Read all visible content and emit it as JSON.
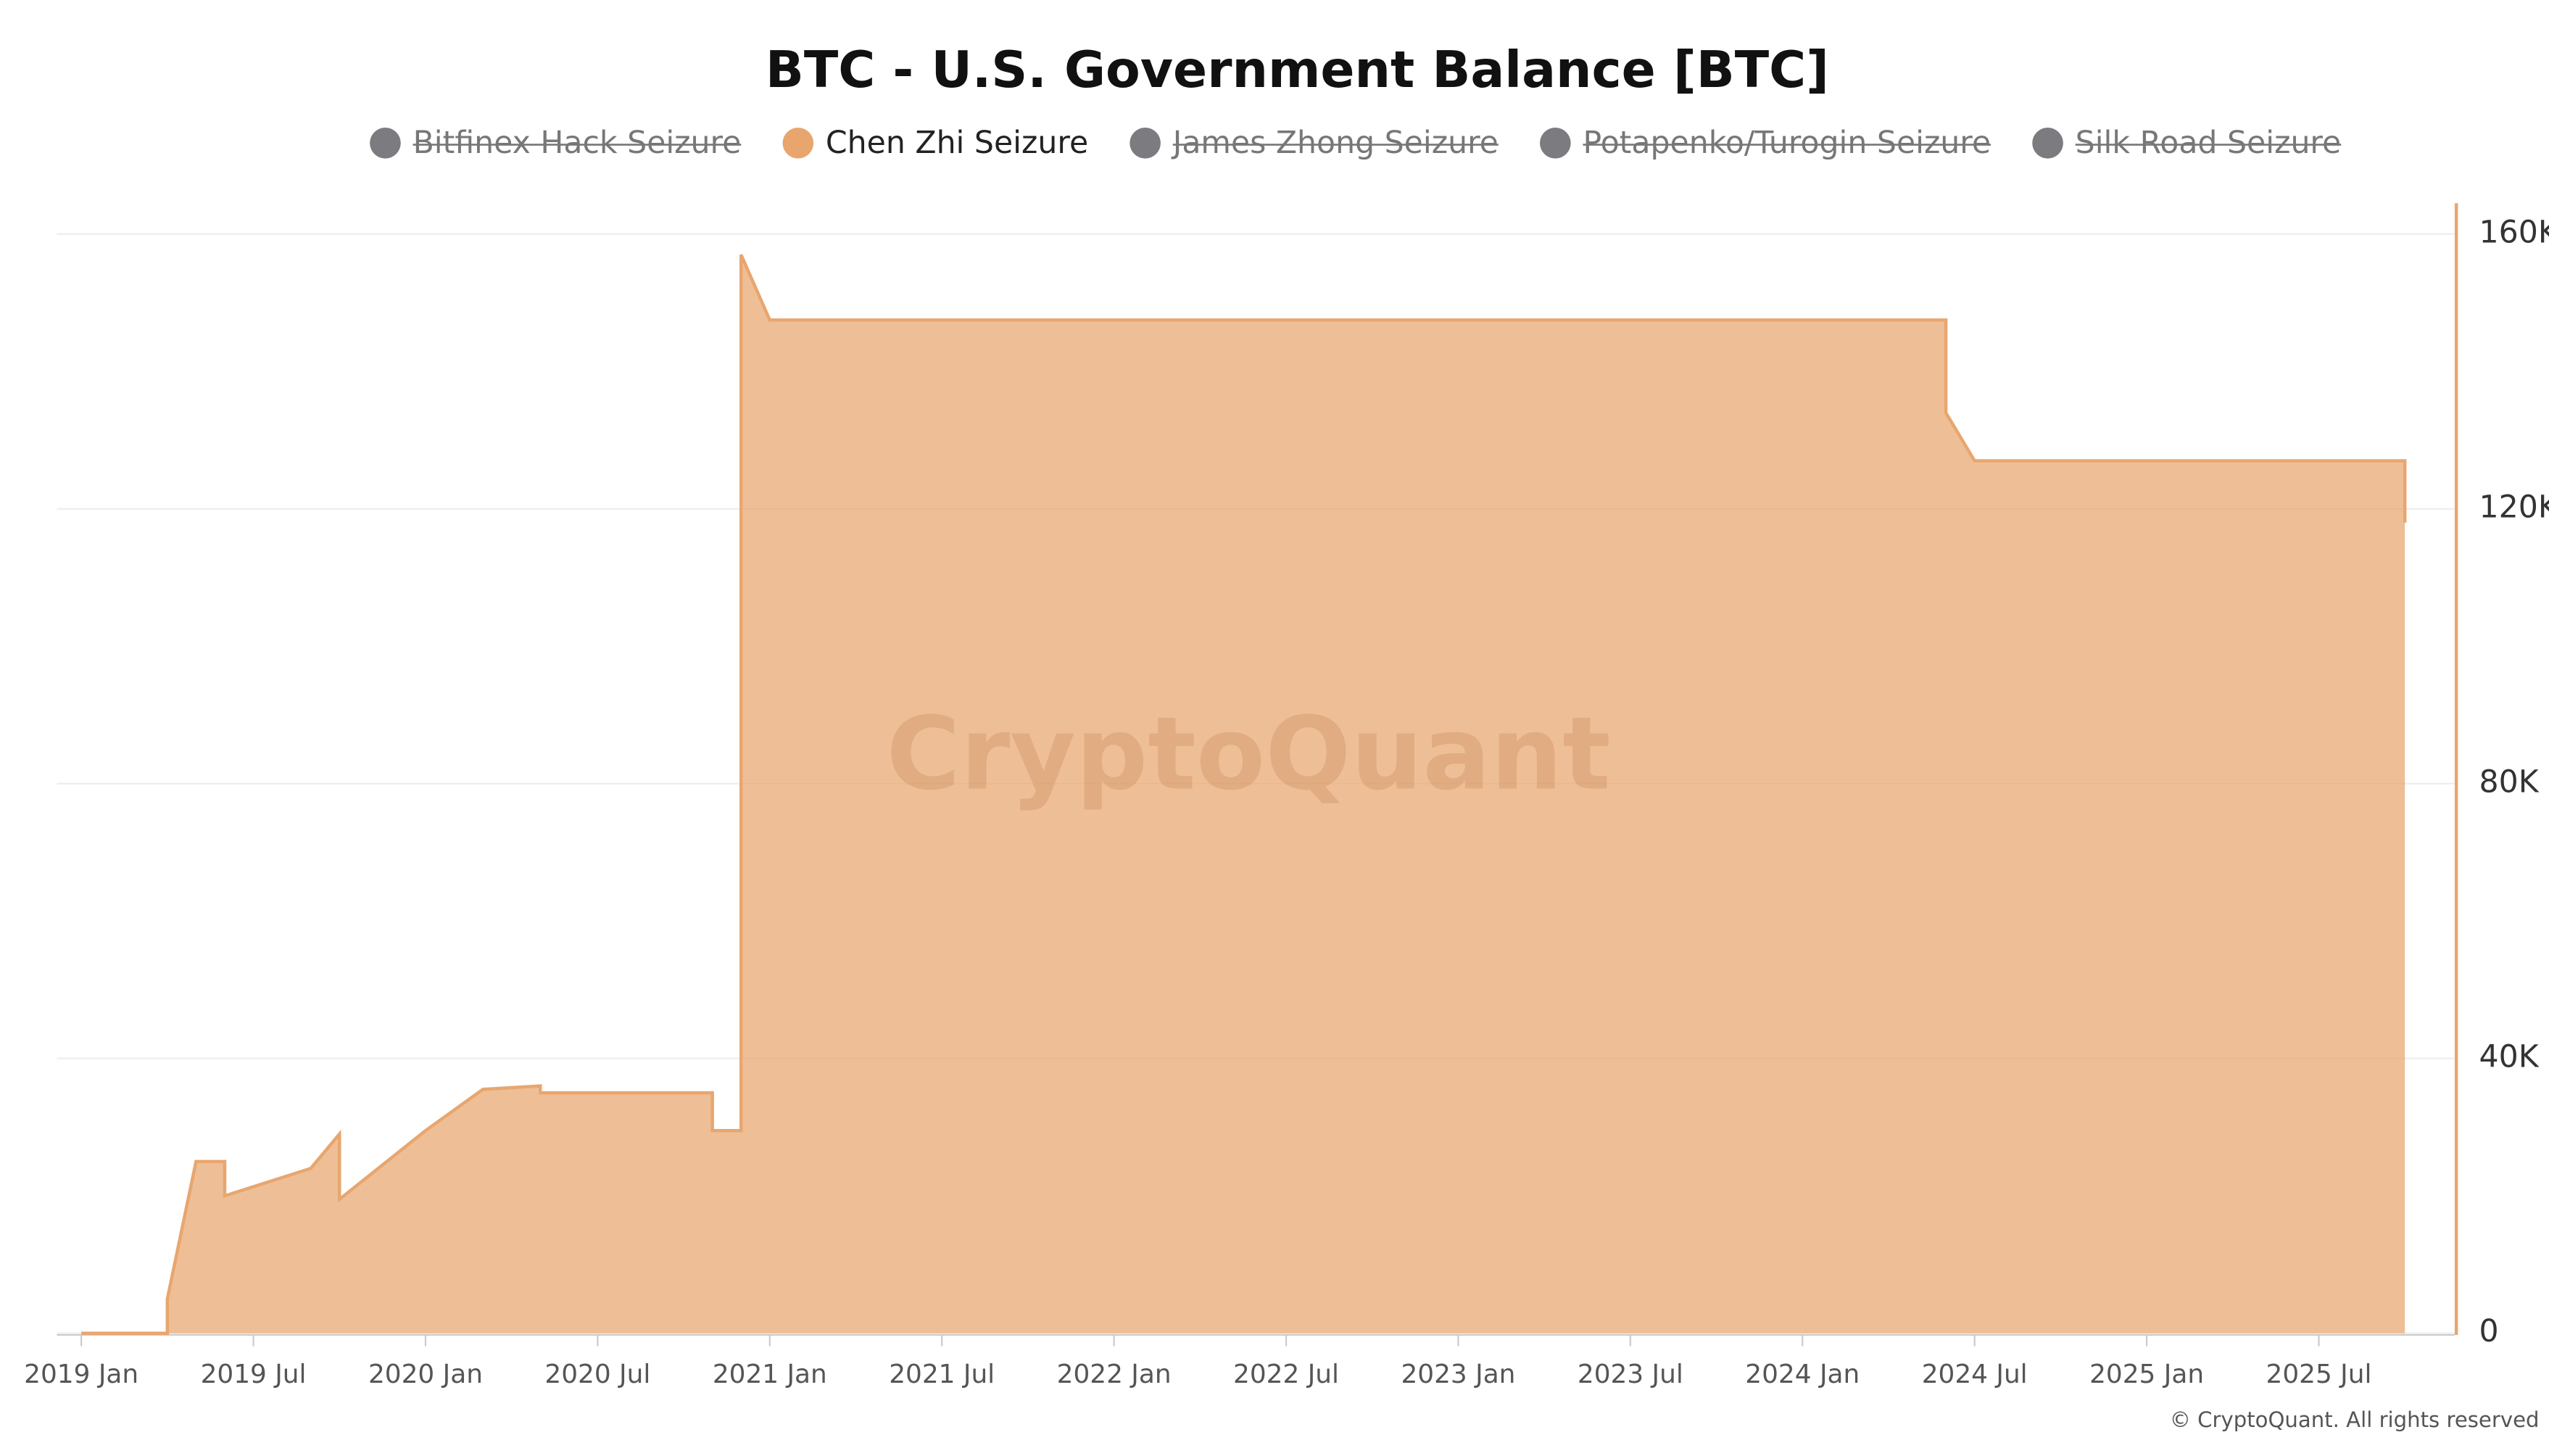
{
  "chart_data": {
    "type": "area",
    "title": "BTC - U.S. Government Balance [BTC]",
    "watermark": "CryptoQuant",
    "copyright": "© CryptoQuant. All rights reserved",
    "legend": [
      {
        "name": "Bitfinex Hack Seizure",
        "color": "#7b7b80",
        "hidden": true
      },
      {
        "name": "Chen Zhi Seizure",
        "color": "#e8a66e",
        "hidden": false
      },
      {
        "name": "James Zhong Seizure",
        "color": "#7b7b80",
        "hidden": true
      },
      {
        "name": "Potapenko/Turogin Seizure",
        "color": "#7b7b80",
        "hidden": true
      },
      {
        "name": "Silk Road Seizure",
        "color": "#7b7b80",
        "hidden": true
      }
    ],
    "x": [
      "2019-01",
      "2019-04",
      "2019-04",
      "2019-05",
      "2019-06",
      "2019-06",
      "2019-09",
      "2019-10",
      "2019-10",
      "2020-01",
      "2020-03",
      "2020-05",
      "2020-05",
      "2020-11",
      "2020-11",
      "2020-11",
      "2020-12",
      "2020-12",
      "2021-01",
      "2024-06",
      "2024-06",
      "2024-07",
      "2025-10",
      "2025-10"
    ],
    "series": [
      {
        "name": "Chen Zhi Seizure",
        "color": "#e8a66e",
        "values": [
          0,
          0,
          5000,
          25000,
          25000,
          20000,
          24000,
          29000,
          19500,
          29500,
          35500,
          36000,
          35000,
          35000,
          32000,
          29500,
          29500,
          157000,
          147500,
          147500,
          134000,
          127000,
          127000,
          118000
        ]
      }
    ],
    "xlim": [
      "2019-01",
      "2025-11"
    ],
    "xticks": [
      {
        "value": "2019-01",
        "label": "2019 Jan"
      },
      {
        "value": "2019-07",
        "label": "2019 Jul"
      },
      {
        "value": "2020-01",
        "label": "2020 Jan"
      },
      {
        "value": "2020-07",
        "label": "2020 Jul"
      },
      {
        "value": "2021-01",
        "label": "2021 Jan"
      },
      {
        "value": "2021-07",
        "label": "2021 Jul"
      },
      {
        "value": "2022-01",
        "label": "2022 Jan"
      },
      {
        "value": "2022-07",
        "label": "2022 Jul"
      },
      {
        "value": "2023-01",
        "label": "2023 Jan"
      },
      {
        "value": "2023-07",
        "label": "2023 Jul"
      },
      {
        "value": "2024-01",
        "label": "2024 Jan"
      },
      {
        "value": "2024-07",
        "label": "2024 Jul"
      },
      {
        "value": "2025-01",
        "label": "2025 Jan"
      },
      {
        "value": "2025-07",
        "label": "2025 Jul"
      }
    ],
    "ylim": [
      0,
      160000
    ],
    "yticks": [
      0,
      {
        "value": 40000,
        "label": "40K"
      },
      {
        "value": 80000,
        "label": "80K"
      },
      {
        "value": 120000,
        "label": "120K"
      },
      {
        "value": 160000,
        "label": "160K"
      }
    ],
    "grid": true
  }
}
